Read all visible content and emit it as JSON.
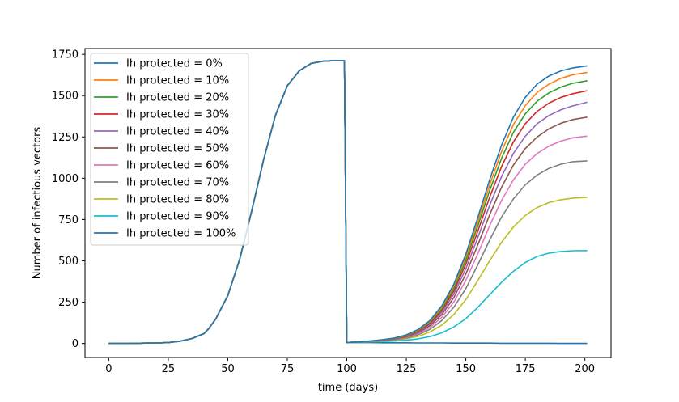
{
  "chart_data": {
    "type": "line",
    "xlabel": "time (days)",
    "ylabel": "Number of infectious vectors",
    "xlim": [
      -10,
      211
    ],
    "ylim": [
      -85,
      1785
    ],
    "xticks": [
      0,
      25,
      50,
      75,
      100,
      125,
      150,
      175,
      200
    ],
    "yticks": [
      0,
      250,
      500,
      750,
      1000,
      1250,
      1500,
      1750
    ],
    "grid": false,
    "legend_position": "top-left",
    "x": [
      0,
      10,
      20,
      25,
      30,
      35,
      40,
      42,
      45,
      50,
      55,
      60,
      65,
      70,
      75,
      80,
      85,
      90,
      95,
      99,
      100,
      105,
      110,
      115,
      120,
      125,
      130,
      135,
      140,
      145,
      150,
      155,
      160,
      165,
      170,
      175,
      180,
      185,
      190,
      195,
      201
    ],
    "series": [
      {
        "name": "Ih protected = 0%",
        "color": "#1f77b4",
        "values": [
          0,
          1,
          3,
          5,
          14,
          30,
          60,
          90,
          150,
          290,
          510,
          800,
          1110,
          1380,
          1560,
          1650,
          1695,
          1708,
          1712,
          1712,
          5,
          10,
          15,
          22,
          33,
          52,
          85,
          140,
          230,
          360,
          540,
          760,
          990,
          1200,
          1370,
          1490,
          1570,
          1620,
          1650,
          1668,
          1680
        ]
      },
      {
        "name": "Ih protected = 10%",
        "color": "#ff7f0e",
        "values": [
          0,
          1,
          3,
          5,
          14,
          30,
          60,
          90,
          150,
          290,
          510,
          800,
          1110,
          1380,
          1560,
          1650,
          1695,
          1708,
          1712,
          1712,
          5,
          10,
          15,
          22,
          32,
          50,
          82,
          135,
          222,
          348,
          522,
          735,
          958,
          1162,
          1325,
          1440,
          1520,
          1570,
          1605,
          1627,
          1640
        ]
      },
      {
        "name": "Ih protected = 20%",
        "color": "#2ca02c",
        "values": [
          0,
          1,
          3,
          5,
          14,
          30,
          60,
          90,
          150,
          290,
          510,
          800,
          1110,
          1380,
          1560,
          1650,
          1695,
          1708,
          1712,
          1712,
          5,
          10,
          15,
          21,
          31,
          48,
          79,
          130,
          212,
          334,
          503,
          710,
          925,
          1120,
          1278,
          1390,
          1467,
          1517,
          1552,
          1575,
          1590
        ]
      },
      {
        "name": "Ih protected = 30%",
        "color": "#d62728",
        "values": [
          0,
          1,
          3,
          5,
          14,
          30,
          60,
          90,
          150,
          290,
          510,
          800,
          1110,
          1380,
          1560,
          1650,
          1695,
          1708,
          1712,
          1712,
          5,
          10,
          15,
          21,
          30,
          46,
          75,
          123,
          202,
          318,
          480,
          678,
          885,
          1070,
          1220,
          1330,
          1405,
          1455,
          1490,
          1512,
          1530
        ]
      },
      {
        "name": "Ih protected = 40%",
        "color": "#9467bd",
        "values": [
          0,
          1,
          3,
          5,
          14,
          30,
          60,
          90,
          150,
          290,
          510,
          800,
          1110,
          1380,
          1560,
          1650,
          1695,
          1708,
          1712,
          1712,
          5,
          10,
          14,
          20,
          29,
          44,
          71,
          116,
          190,
          300,
          452,
          640,
          835,
          1010,
          1150,
          1255,
          1330,
          1380,
          1415,
          1438,
          1460
        ]
      },
      {
        "name": "Ih protected = 50%",
        "color": "#8c564b",
        "values": [
          0,
          1,
          3,
          5,
          14,
          30,
          60,
          90,
          150,
          290,
          510,
          800,
          1110,
          1380,
          1560,
          1650,
          1695,
          1708,
          1712,
          1712,
          5,
          10,
          14,
          19,
          27,
          41,
          66,
          108,
          176,
          278,
          420,
          595,
          778,
          945,
          1080,
          1180,
          1250,
          1300,
          1333,
          1355,
          1370
        ]
      },
      {
        "name": "Ih protected = 60%",
        "color": "#e377c2",
        "values": [
          0,
          1,
          3,
          5,
          14,
          30,
          60,
          90,
          150,
          290,
          510,
          800,
          1110,
          1380,
          1560,
          1650,
          1695,
          1708,
          1712,
          1712,
          5,
          10,
          13,
          18,
          25,
          38,
          60,
          97,
          160,
          252,
          382,
          542,
          712,
          865,
          990,
          1085,
          1150,
          1195,
          1225,
          1245,
          1255
        ]
      },
      {
        "name": "Ih protected = 70%",
        "color": "#7f7f7f",
        "values": [
          0,
          1,
          3,
          5,
          14,
          30,
          60,
          90,
          150,
          290,
          510,
          800,
          1110,
          1380,
          1560,
          1650,
          1695,
          1708,
          1712,
          1712,
          5,
          9,
          13,
          17,
          23,
          34,
          53,
          86,
          140,
          220,
          332,
          475,
          625,
          765,
          875,
          960,
          1020,
          1060,
          1085,
          1100,
          1105
        ]
      },
      {
        "name": "Ih protected = 80%",
        "color": "#bcbd22",
        "values": [
          0,
          1,
          3,
          5,
          14,
          30,
          60,
          90,
          150,
          290,
          510,
          800,
          1110,
          1380,
          1560,
          1650,
          1695,
          1708,
          1712,
          1712,
          5,
          9,
          12,
          15,
          20,
          29,
          43,
          70,
          112,
          176,
          265,
          380,
          500,
          612,
          705,
          775,
          823,
          853,
          870,
          880,
          885
        ]
      },
      {
        "name": "Ih protected = 90%",
        "color": "#17becf",
        "values": [
          0,
          1,
          3,
          5,
          14,
          30,
          60,
          90,
          150,
          290,
          510,
          800,
          1110,
          1380,
          1560,
          1650,
          1695,
          1708,
          1712,
          1712,
          5,
          8,
          10,
          12,
          15,
          20,
          28,
          42,
          65,
          100,
          150,
          218,
          295,
          370,
          437,
          490,
          527,
          547,
          557,
          561,
          562
        ]
      },
      {
        "name": "Ih protected = 100%",
        "color": "#1f77b4",
        "values": [
          0,
          1,
          3,
          5,
          14,
          30,
          60,
          90,
          150,
          290,
          510,
          800,
          1110,
          1380,
          1560,
          1650,
          1695,
          1708,
          1712,
          1712,
          5,
          5,
          5,
          4,
          4,
          4,
          3,
          3,
          3,
          2,
          2,
          2,
          2,
          1,
          1,
          1,
          1,
          1,
          0,
          0,
          0
        ]
      }
    ]
  }
}
